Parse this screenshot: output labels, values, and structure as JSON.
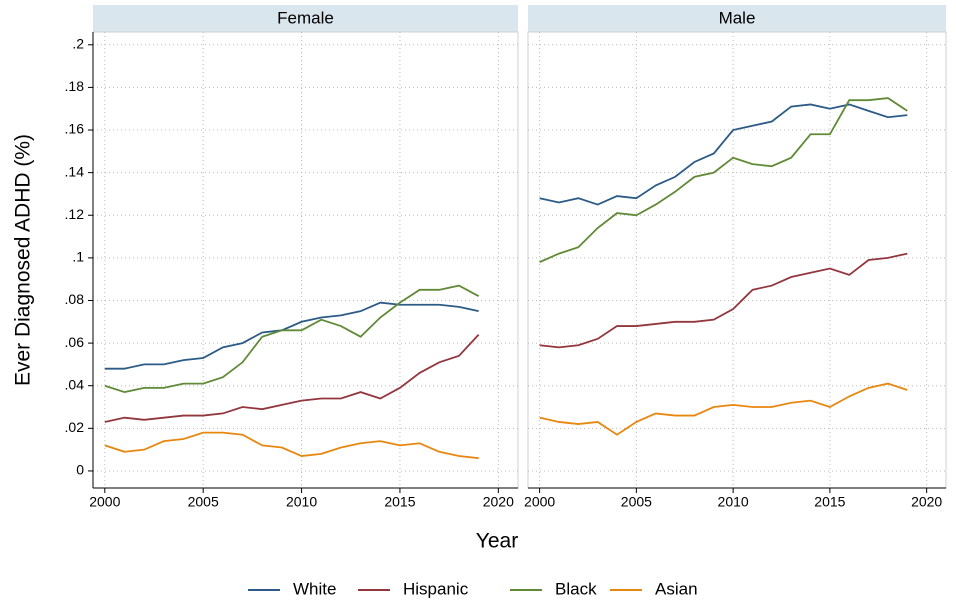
{
  "ylabel": "Ever Diagnosed ADHD (%)",
  "xlabel": "Year",
  "chart_data": [
    {
      "type": "line",
      "title": "Female",
      "x": [
        2000,
        2001,
        2002,
        2003,
        2004,
        2005,
        2006,
        2007,
        2008,
        2009,
        2010,
        2011,
        2012,
        2013,
        2014,
        2015,
        2016,
        2017,
        2018,
        2019
      ],
      "series": [
        {
          "name": "White",
          "color": "#2b5b86",
          "values": [
            0.048,
            0.048,
            0.05,
            0.05,
            0.052,
            0.053,
            0.058,
            0.06,
            0.065,
            0.066,
            0.07,
            0.072,
            0.073,
            0.075,
            0.079,
            0.078,
            0.078,
            0.078,
            0.077,
            0.075
          ]
        },
        {
          "name": "Hispanic",
          "color": "#93363d",
          "values": [
            0.023,
            0.025,
            0.024,
            0.025,
            0.026,
            0.026,
            0.027,
            0.03,
            0.029,
            0.031,
            0.033,
            0.034,
            0.034,
            0.037,
            0.034,
            0.039,
            0.046,
            0.051,
            0.054,
            0.064
          ]
        },
        {
          "name": "Black",
          "color": "#5f8a36",
          "values": [
            0.04,
            0.037,
            0.039,
            0.039,
            0.041,
            0.041,
            0.044,
            0.051,
            0.063,
            0.066,
            0.066,
            0.071,
            0.068,
            0.063,
            0.072,
            0.079,
            0.085,
            0.085,
            0.087,
            0.082
          ]
        },
        {
          "name": "Asian",
          "color": "#e8870f",
          "values": [
            0.012,
            0.009,
            0.01,
            0.014,
            0.015,
            0.018,
            0.018,
            0.017,
            0.012,
            0.011,
            0.007,
            0.008,
            0.011,
            0.013,
            0.014,
            0.012,
            0.013,
            0.009,
            0.007,
            0.006
          ]
        }
      ],
      "xlim": [
        1999.4,
        2021
      ],
      "xticks": [
        2000,
        2005,
        2010,
        2015,
        2020
      ],
      "ylim": [
        -0.008,
        0.206
      ],
      "yticks": [
        0,
        {
          "value": 0.02,
          "label": ".02"
        },
        {
          "value": 0.04,
          "label": ".04"
        },
        {
          "value": 0.06,
          "label": ".06"
        },
        {
          "value": 0.08,
          "label": ".08"
        },
        {
          "value": 0.1,
          "label": ".1"
        },
        {
          "value": 0.12,
          "label": ".12"
        },
        {
          "value": 0.14,
          "label": ".14"
        },
        {
          "value": 0.16,
          "label": ".16"
        },
        {
          "value": 0.18,
          "label": ".18"
        },
        {
          "value": 0.2,
          "label": ".2"
        }
      ],
      "grid": true
    },
    {
      "type": "line",
      "title": "Male",
      "x": [
        2000,
        2001,
        2002,
        2003,
        2004,
        2005,
        2006,
        2007,
        2008,
        2009,
        2010,
        2011,
        2012,
        2013,
        2014,
        2015,
        2016,
        2017,
        2018,
        2019
      ],
      "series": [
        {
          "name": "White",
          "color": "#2b5b86",
          "values": [
            0.128,
            0.126,
            0.128,
            0.125,
            0.129,
            0.128,
            0.134,
            0.138,
            0.145,
            0.149,
            0.16,
            0.162,
            0.164,
            0.171,
            0.172,
            0.17,
            0.172,
            0.169,
            0.166,
            0.167
          ]
        },
        {
          "name": "Hispanic",
          "color": "#93363d",
          "values": [
            0.059,
            0.058,
            0.059,
            0.062,
            0.068,
            0.068,
            0.069,
            0.07,
            0.07,
            0.071,
            0.076,
            0.085,
            0.087,
            0.091,
            0.093,
            0.095,
            0.092,
            0.099,
            0.1,
            0.102
          ]
        },
        {
          "name": "Black",
          "color": "#5f8a36",
          "values": [
            0.098,
            0.102,
            0.105,
            0.114,
            0.121,
            0.12,
            0.125,
            0.131,
            0.138,
            0.14,
            0.147,
            0.144,
            0.143,
            0.147,
            0.158,
            0.158,
            0.174,
            0.174,
            0.175,
            0.169
          ]
        },
        {
          "name": "Asian",
          "color": "#e8870f",
          "values": [
            0.025,
            0.023,
            0.022,
            0.023,
            0.017,
            0.023,
            0.027,
            0.026,
            0.026,
            0.03,
            0.031,
            0.03,
            0.03,
            0.032,
            0.033,
            0.03,
            0.035,
            0.039,
            0.041,
            0.038
          ]
        }
      ],
      "xlim": [
        1999.4,
        2021
      ],
      "xticks": [
        2000,
        2005,
        2010,
        2015,
        2020
      ],
      "ylim": [
        -0.008,
        0.206
      ],
      "yticks": [
        0,
        {
          "value": 0.02,
          "label": ".02"
        },
        {
          "value": 0.04,
          "label": ".04"
        },
        {
          "value": 0.06,
          "label": ".06"
        },
        {
          "value": 0.08,
          "label": ".08"
        },
        {
          "value": 0.1,
          "label": ".1"
        },
        {
          "value": 0.12,
          "label": ".12"
        },
        {
          "value": 0.14,
          "label": ".14"
        },
        {
          "value": 0.16,
          "label": ".16"
        },
        {
          "value": 0.18,
          "label": ".18"
        },
        {
          "value": 0.2,
          "label": ".2"
        }
      ],
      "grid": true
    }
  ]
}
